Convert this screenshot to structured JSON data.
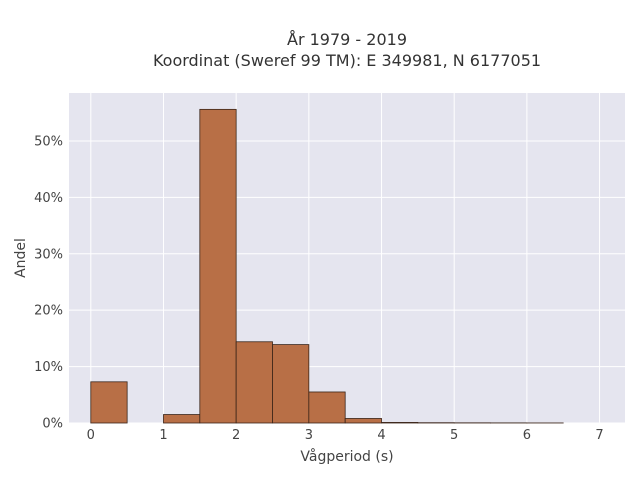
{
  "chart_data": {
    "type": "bar",
    "title_lines": [
      "År 1979 - 2019",
      "Koordinat (Sweref 99 TM): E 349981, N 6177051"
    ],
    "xlabel": "Vågperiod (s)",
    "ylabel": "Andel",
    "xlim": [
      -0.3,
      7.35
    ],
    "ylim": [
      0,
      0.585
    ],
    "x_ticks": [
      0,
      1,
      2,
      3,
      4,
      5,
      6,
      7
    ],
    "x_tick_labels": [
      "0",
      "1",
      "2",
      "3",
      "4",
      "5",
      "6",
      "7"
    ],
    "y_ticks": [
      0,
      0.1,
      0.2,
      0.3,
      0.4,
      0.5
    ],
    "y_tick_labels": [
      "0%",
      "10%",
      "20%",
      "30%",
      "40%",
      "50%"
    ],
    "bins": [
      {
        "x0": 0.0,
        "x1": 0.5,
        "value": 0.073
      },
      {
        "x0": 0.5,
        "x1": 1.0,
        "value": 0.0
      },
      {
        "x0": 1.0,
        "x1": 1.5,
        "value": 0.015
      },
      {
        "x0": 1.5,
        "x1": 2.0,
        "value": 0.556
      },
      {
        "x0": 2.0,
        "x1": 2.5,
        "value": 0.144
      },
      {
        "x0": 2.5,
        "x1": 3.0,
        "value": 0.139
      },
      {
        "x0": 3.0,
        "x1": 3.5,
        "value": 0.055
      },
      {
        "x0": 3.5,
        "x1": 4.0,
        "value": 0.008
      },
      {
        "x0": 4.0,
        "x1": 4.5,
        "value": 0.001
      },
      {
        "x0": 4.5,
        "x1": 5.0,
        "value": 0.0005
      },
      {
        "x0": 5.0,
        "x1": 5.5,
        "value": 0.0003
      },
      {
        "x0": 5.5,
        "x1": 6.0,
        "value": 0.0002
      },
      {
        "x0": 6.0,
        "x1": 6.5,
        "value": 0.0001
      }
    ],
    "grid": true,
    "colors": {
      "plot_background": "#e5e5ef",
      "grid": "#ffffff",
      "bar_fill": "#b86f46",
      "bar_edge": "#3a2418"
    }
  }
}
